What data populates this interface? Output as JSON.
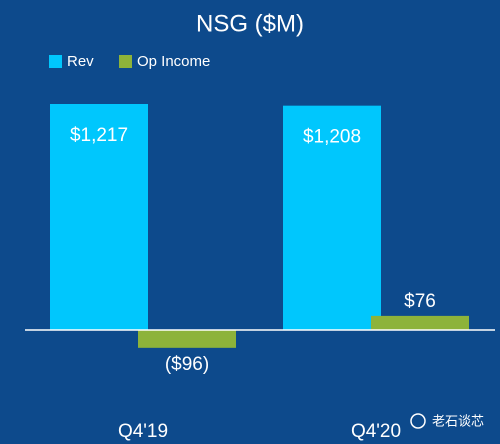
{
  "chart_data": {
    "type": "bar",
    "title": "NSG ($M)",
    "categories": [
      "Q4'19",
      "Q4'20"
    ],
    "series": [
      {
        "name": "Rev",
        "color": "#00c7fd",
        "values": [
          1217,
          1208
        ],
        "value_labels": [
          "$1,217",
          "$1,208"
        ]
      },
      {
        "name": "Op Income",
        "color": "#8db33a",
        "values": [
          -96,
          76
        ],
        "value_labels": [
          "($96)",
          "$76"
        ]
      }
    ],
    "watermark": "老石谈芯"
  }
}
